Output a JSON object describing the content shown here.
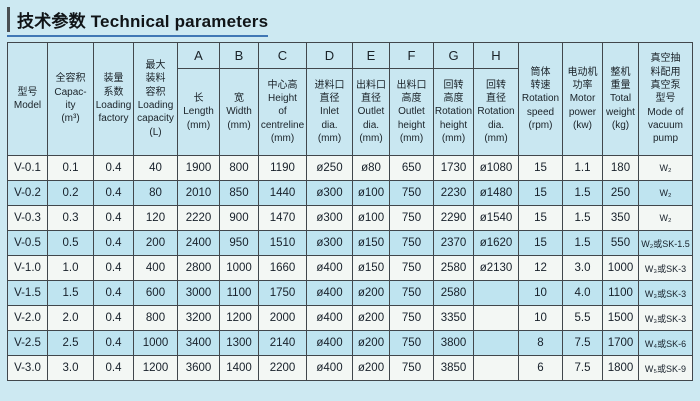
{
  "page": {
    "title": "技术参数 Technical parameters"
  },
  "colors": {
    "page_background": "#cde9f2",
    "header_background": "#c9e7f1",
    "row_plain": "#f3f7f4",
    "row_alt": "#bfe4f0",
    "title_underline": "#4077b5",
    "grid_border": "#41474c"
  },
  "table": {
    "header": {
      "span_left": [
        {
          "name": "model",
          "lines": "型号\nModel"
        },
        {
          "name": "capacity",
          "lines": "全容积\nCapac-\nity\n(m³)"
        },
        {
          "name": "loading-factor",
          "lines": "装量\n系数\nLoading\nfactory"
        },
        {
          "name": "loading-capacity",
          "lines": "最大\n装料\n容积\nLoading\ncapacity\n(L)"
        }
      ],
      "lettered": [
        {
          "letter": "A",
          "lines": "长\nLength\n(mm)"
        },
        {
          "letter": "B",
          "lines": "宽\nWidth\n(mm)"
        },
        {
          "letter": "C",
          "lines": "中心高\nHeight\nof\ncentreline\n(mm)"
        },
        {
          "letter": "D",
          "lines": "进料口\n直径\nInlet\ndia.\n(mm)"
        },
        {
          "letter": "E",
          "lines": "出料口\n直径\nOutlet\ndia.\n(mm)"
        },
        {
          "letter": "F",
          "lines": "出料口\n高度\nOutlet\nheight\n(mm)"
        },
        {
          "letter": "G",
          "lines": "回转\n高度\nRotation\nheight\n(mm)"
        },
        {
          "letter": "H",
          "lines": "回转\n直径\nRotation\ndia.\n(mm)"
        }
      ],
      "span_right": [
        {
          "name": "rotation-speed",
          "lines": "筒体\n转速\nRotation\nspeed\n(rpm)"
        },
        {
          "name": "motor-power",
          "lines": "电动机\n功率\nMotor\npower\n(kw)"
        },
        {
          "name": "total-weight",
          "lines": "整机\n重量\nTotal\nweight\n(kg)"
        },
        {
          "name": "vacuum-pump",
          "lines": "真空抽\n料配用\n真空泵\n型号\nMode of\nvacuum\npump"
        }
      ]
    },
    "rows": [
      [
        "V-0.1",
        "0.1",
        "0.4",
        "40",
        "1900",
        "800",
        "1190",
        "ø250",
        "ø80",
        "650",
        "1730",
        "ø1080",
        "15",
        "1.1",
        "180",
        "W₂"
      ],
      [
        "V-0.2",
        "0.2",
        "0.4",
        "80",
        "2010",
        "850",
        "1440",
        "ø300",
        "ø100",
        "750",
        "2230",
        "ø1480",
        "15",
        "1.5",
        "250",
        "W₂"
      ],
      [
        "V-0.3",
        "0.3",
        "0.4",
        "120",
        "2220",
        "900",
        "1470",
        "ø300",
        "ø100",
        "750",
        "2290",
        "ø1540",
        "15",
        "1.5",
        "350",
        "W₂"
      ],
      [
        "V-0.5",
        "0.5",
        "0.4",
        "200",
        "2400",
        "950",
        "1510",
        "ø300",
        "ø150",
        "750",
        "2370",
        "ø1620",
        "15",
        "1.5",
        "550",
        "W₂或SK-1.5"
      ],
      [
        "V-1.0",
        "1.0",
        "0.4",
        "400",
        "2800",
        "1000",
        "1660",
        "ø400",
        "ø150",
        "750",
        "2580",
        "ø2130",
        "12",
        "3.0",
        "1000",
        "W₃或SK-3"
      ],
      [
        "V-1.5",
        "1.5",
        "0.4",
        "600",
        "3000",
        "1100",
        "1750",
        "ø400",
        "ø200",
        "750",
        "2580",
        "",
        "10",
        "4.0",
        "1100",
        "W₃或SK-3"
      ],
      [
        "V-2.0",
        "2.0",
        "0.4",
        "800",
        "3200",
        "1200",
        "2000",
        "ø400",
        "ø200",
        "750",
        "3350",
        "",
        "10",
        "5.5",
        "1500",
        "W₃或SK-3"
      ],
      [
        "V-2.5",
        "2.5",
        "0.4",
        "1000",
        "3400",
        "1300",
        "2140",
        "ø400",
        "ø200",
        "750",
        "3800",
        "",
        "8",
        "7.5",
        "1700",
        "W₄或SK-6"
      ],
      [
        "V-3.0",
        "3.0",
        "0.4",
        "1200",
        "3600",
        "1400",
        "2200",
        "ø400",
        "ø200",
        "750",
        "3850",
        "",
        "6",
        "7.5",
        "1800",
        "W₅或SK-9"
      ]
    ]
  }
}
